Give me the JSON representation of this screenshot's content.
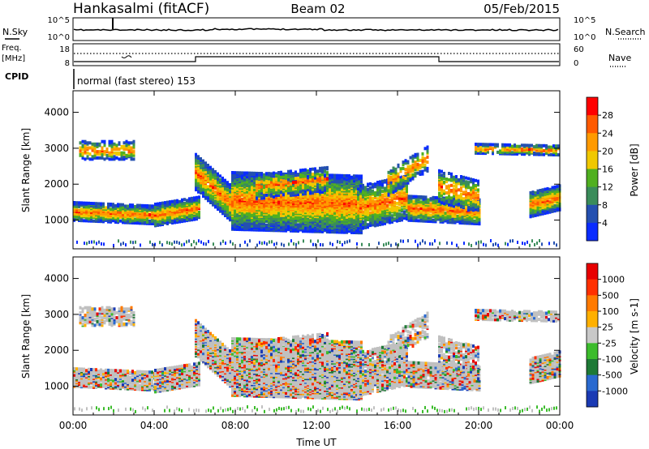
{
  "header": {
    "station": "Hankasalmi (fitACF)",
    "beam": "Beam 02",
    "date": "05/Feb/2015"
  },
  "summary_panel": {
    "left_label": "N.Sky",
    "right_label": "N.Search",
    "left_ticks": [
      "10^5",
      "10^0"
    ],
    "right_ticks": [
      "10^5",
      "10^0"
    ]
  },
  "freq_panel": {
    "left_label_1": "Freq.",
    "left_label_2": "[MHz]",
    "left_ticks": [
      "18",
      "8"
    ],
    "right_label": "Nave",
    "right_ticks": [
      "60",
      "0"
    ]
  },
  "cpid": {
    "label": "CPID",
    "text": "normal (fast stereo) 153"
  },
  "colors": {
    "power_scale": [
      "#0a2cff",
      "#2450b0",
      "#3a8c5a",
      "#50b020",
      "#f0c800",
      "#ff9a00",
      "#ff5a00",
      "#ff0000"
    ],
    "velocity_scale": [
      "#1a3ab4",
      "#2a6ad0",
      "#1e7a36",
      "#3cbc2c",
      "#c8c8c8",
      "#ffb000",
      "#ff7a00",
      "#ff3000",
      "#e80000"
    ],
    "ground_scatter": "#c0c0c0"
  },
  "chart_data": [
    {
      "type": "heatmap",
      "title": "",
      "xlabel": "",
      "ylabel": "Slant Range [km]",
      "x_ticks": [
        "00:00",
        "04:00",
        "08:00",
        "12:00",
        "16:00",
        "20:00",
        "00:00"
      ],
      "y_ticks": [
        "1000",
        "2000",
        "3000",
        "4000"
      ],
      "xlim": [
        0,
        24
      ],
      "ylim": [
        200,
        4600
      ],
      "colorbar_label": "Power [dB]",
      "colorbar_ticks": [
        "28",
        "24",
        "20",
        "16",
        "12",
        "8",
        "4"
      ]
    },
    {
      "type": "heatmap",
      "title": "",
      "xlabel": "Time UT",
      "ylabel": "Slant Range [km]",
      "x_ticks": [
        "00:00",
        "04:00",
        "08:00",
        "12:00",
        "16:00",
        "20:00",
        "00:00"
      ],
      "y_ticks": [
        "1000",
        "2000",
        "3000",
        "4000"
      ],
      "xlim": [
        0,
        24
      ],
      "ylim": [
        200,
        4600
      ],
      "colorbar_label": "Velocity [m s-1]",
      "colorbar_ticks": [
        "1000",
        "500",
        "100",
        "25",
        "-25",
        "-100",
        "-500",
        "-1000"
      ]
    }
  ]
}
